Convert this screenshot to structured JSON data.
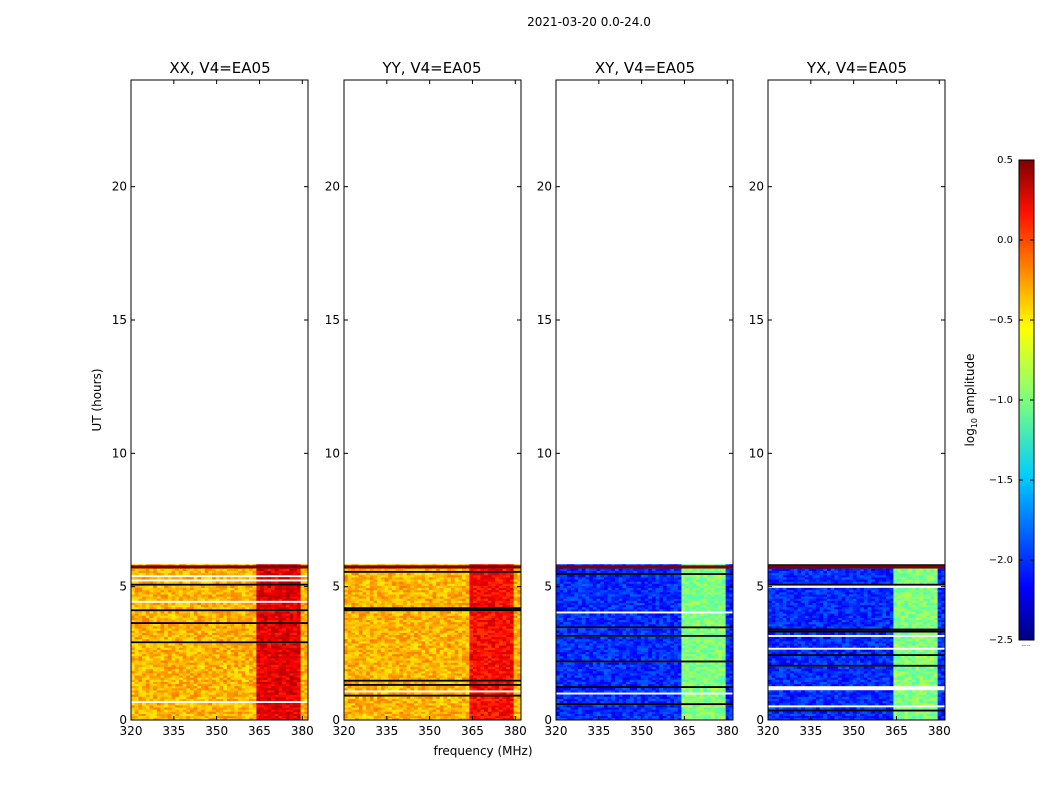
{
  "figure": {
    "suptitle": "2021-03-20 0.0-24.0",
    "ylabel": "UT (hours)",
    "xlabel": "frequency (MHz)",
    "colorbar_label_prefix": "log",
    "colorbar_label_sub": "10",
    "colorbar_label_suffix": " amplitude",
    "colorbar_min_label": "·····"
  },
  "chart_data": [
    {
      "type": "heatmap",
      "title": "XX, V4=EA05",
      "xlim": [
        320,
        382
      ],
      "ylim": [
        0,
        24
      ],
      "xticks": [
        "320",
        "335",
        "350",
        "365",
        "380"
      ],
      "yticks": [
        "0",
        "5",
        "10",
        "15",
        "20"
      ],
      "data_extent_hours": [
        0,
        5.8
      ],
      "base_log10_amplitude": -0.4,
      "band_log10_amplitude": 0.2,
      "band_mhz": [
        363,
        380
      ]
    },
    {
      "type": "heatmap",
      "title": "YY, V4=EA05",
      "xlim": [
        320,
        382
      ],
      "ylim": [
        0,
        24
      ],
      "xticks": [
        "320",
        "335",
        "350",
        "365",
        "380"
      ],
      "yticks": [
        "0",
        "5",
        "10",
        "15",
        "20"
      ],
      "data_extent_hours": [
        0,
        5.8
      ],
      "base_log10_amplitude": -0.4,
      "band_log10_amplitude": 0.1,
      "band_mhz": [
        363,
        380
      ]
    },
    {
      "type": "heatmap",
      "title": "XY, V4=EA05",
      "xlim": [
        320,
        382
      ],
      "ylim": [
        0,
        24
      ],
      "xticks": [
        "320",
        "335",
        "350",
        "365",
        "380"
      ],
      "yticks": [
        "0",
        "5",
        "10",
        "15",
        "20"
      ],
      "data_extent_hours": [
        0,
        5.8
      ],
      "base_log10_amplitude": -2.0,
      "band_log10_amplitude": -1.0,
      "band_mhz": [
        363,
        380
      ]
    },
    {
      "type": "heatmap",
      "title": "YX, V4=EA05",
      "xlim": [
        320,
        382
      ],
      "ylim": [
        0,
        24
      ],
      "xticks": [
        "320",
        "335",
        "350",
        "365",
        "380"
      ],
      "yticks": [
        "0",
        "5",
        "10",
        "15",
        "20"
      ],
      "data_extent_hours": [
        0,
        5.8
      ],
      "base_log10_amplitude": -2.0,
      "band_log10_amplitude": -1.0,
      "band_mhz": [
        363,
        380
      ]
    }
  ],
  "colorbar": {
    "colormap": "jet",
    "range": [
      -2.5,
      0.5
    ],
    "ticks": [
      "0.5",
      "0.0",
      "−0.5",
      "−1.0",
      "−1.5",
      "−2.0",
      "−2.5"
    ]
  }
}
